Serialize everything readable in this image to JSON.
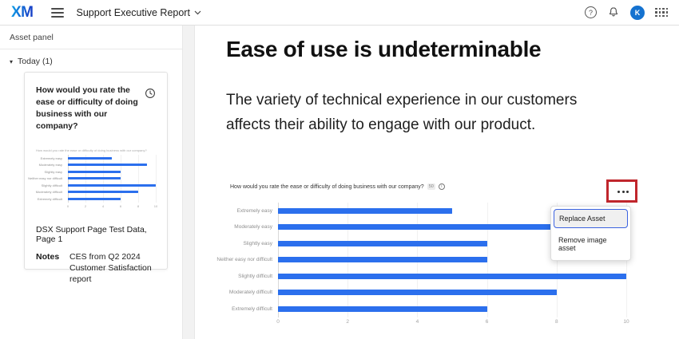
{
  "topbar": {
    "logo": "XM",
    "title": "Support Executive Report",
    "avatar_initial": "K"
  },
  "sidebar": {
    "header": "Asset panel",
    "group_label": "Today (1)",
    "card": {
      "question": "How would you rate the ease or difficulty of doing business with our company?",
      "source": "DSX Support Page Test Data, Page 1",
      "notes_label": "Notes",
      "notes_text": "CES from Q2 2024 Customer Satisfaction report"
    }
  },
  "main": {
    "heading": "Ease of use is undeterminable",
    "subheading": "The variety of technical experience in our customers affects their ability to engage with our product.",
    "chart_header": {
      "title": "How would you rate the ease or difficulty of doing business with our company?",
      "badge": "50"
    },
    "context_menu": {
      "items": [
        "Replace Asset",
        "Remove image asset"
      ]
    }
  },
  "chart_data": {
    "type": "bar",
    "orientation": "horizontal",
    "title": "How would you rate the ease or difficulty of doing business with our company?",
    "categories": [
      "Extremely easy",
      "Moderately easy",
      "Slightly easy",
      "Neither easy nor difficult",
      "Slightly difficult",
      "Moderately difficult",
      "Extremely difficult"
    ],
    "values": [
      5,
      9,
      6,
      6,
      10,
      8,
      6
    ],
    "xlim": [
      0,
      10
    ],
    "xticks": [
      0,
      2,
      4,
      6,
      8,
      10
    ],
    "bar_color": "#2b6fed",
    "grid": true,
    "legend": false
  },
  "colors": {
    "accent_blue": "#2b6fed",
    "avatar_bg": "#1472d0",
    "annotation_red": "#c0262c",
    "menu_focus_border": "#3c63e0",
    "logo_gradient_start": "#0fa3e8",
    "logo_gradient_end": "#1742c8"
  }
}
